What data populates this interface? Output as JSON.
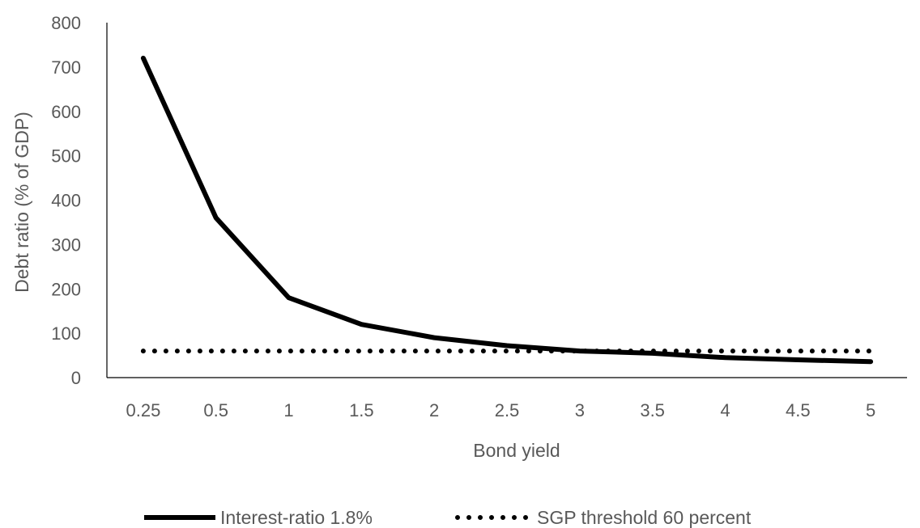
{
  "chart_data": {
    "type": "line",
    "title": "",
    "xlabel": "Bond yield",
    "ylabel": "Debt ratio (% of GDP)",
    "categories": [
      "0.25",
      "0.5",
      "1",
      "1.5",
      "2",
      "2.5",
      "3",
      "3.5",
      "4",
      "4.5",
      "5"
    ],
    "ylim": [
      0,
      800
    ],
    "yticks": [
      "0",
      "100",
      "200",
      "300",
      "400",
      "500",
      "600",
      "700",
      "800"
    ],
    "grid": false,
    "legend_position": "bottom",
    "series": [
      {
        "name": "Interest-ratio 1.8%",
        "style": "solid",
        "color": "#000000",
        "values": [
          720,
          360,
          180,
          120,
          90,
          72,
          60,
          55,
          45,
          40,
          36
        ]
      },
      {
        "name": "SGP threshold 60 percent",
        "style": "dotted",
        "color": "#000000",
        "values": [
          60,
          60,
          60,
          60,
          60,
          60,
          60,
          60,
          60,
          60,
          60
        ]
      }
    ]
  }
}
